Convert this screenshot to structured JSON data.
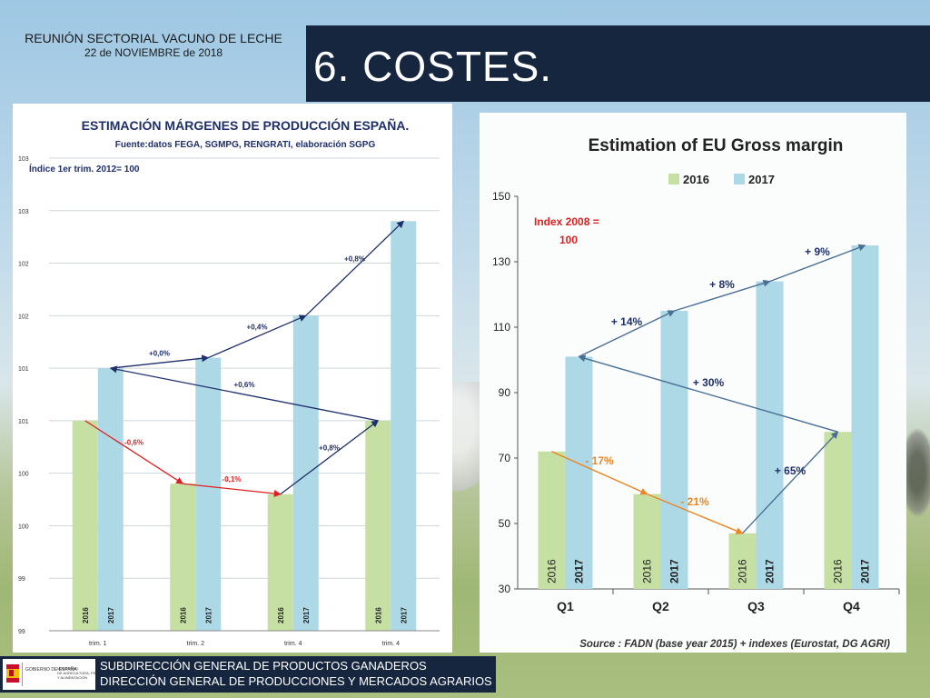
{
  "header": {
    "meeting_title": "REUNIÓN SECTORIAL VACUNO DE LECHE",
    "meeting_date": "22 de NOVIEMBRE de 2018",
    "slide_title": "6. COSTES."
  },
  "footer": {
    "line1": "SUBDIRECCIÓN GENERAL DE PRODUCTOS GANADEROS",
    "line2": "DIRECCIÓN GENERAL DE PRODUCCIONES Y MERCADOS AGRARIOS",
    "logo_text": "GOBIERNO DE ESPAÑA",
    "logo_text2": "MINISTERIO DE AGRICULTURA, PESCA Y ALIMENTACIÓN"
  },
  "colors": {
    "title_bar": "#16263f",
    "green_bar": "#c6e0a4",
    "blue_bar": "#add8e6",
    "arrow_red": "#e02020",
    "arrow_navy": "#1f2f6a",
    "arrow_orange": "#ee8522",
    "arrow_steel": "#4a6f95"
  },
  "chart_data": [
    {
      "type": "bar",
      "title": "ESTIMACIÓN MÁRGENES DE PRODUCCIÓN ESPAÑA.",
      "subtitle": "Fuente:datos FEGA, SGMPG, RENGRATI, elaboración SGPG",
      "index_note": "Índice 1er trim. 2012= 100",
      "categories": [
        "trim. 1",
        "trim. 2",
        "trim. 4",
        "trim. 4"
      ],
      "series": [
        {
          "name": "2016",
          "values": [
            101.0,
            100.4,
            100.3,
            101.0
          ]
        },
        {
          "name": "2017",
          "values": [
            101.5,
            101.6,
            102.0,
            102.9
          ]
        }
      ],
      "bar_labels": [
        "2016",
        "2017"
      ],
      "y_ticks": [
        "103",
        "103",
        "102",
        "102",
        "101",
        "101",
        "100",
        "100",
        "99",
        "99"
      ],
      "ylim": [
        99,
        103.5
      ],
      "grid": true,
      "annotations": [
        {
          "text": "+0,0%",
          "from": [
            0,
            "2017"
          ],
          "to": [
            1,
            "2017"
          ],
          "color": "navy"
        },
        {
          "text": "+0,4%",
          "from": [
            1,
            "2017"
          ],
          "to": [
            2,
            "2017"
          ],
          "color": "navy"
        },
        {
          "text": "+0,8%",
          "from": [
            2,
            "2017"
          ],
          "to": [
            3,
            "2017"
          ],
          "color": "navy"
        },
        {
          "text": "+0,6%",
          "from": [
            3,
            "2016"
          ],
          "to": [
            0,
            "2017"
          ],
          "color": "navy"
        },
        {
          "text": "-0,6%",
          "from": [
            0,
            "2016"
          ],
          "to": [
            1,
            "2016"
          ],
          "color": "red"
        },
        {
          "text": "-0,1%",
          "from": [
            1,
            "2016"
          ],
          "to": [
            2,
            "2016"
          ],
          "color": "red"
        },
        {
          "text": "+0,8%",
          "from": [
            2,
            "2016"
          ],
          "to": [
            3,
            "2016"
          ],
          "color": "navy"
        }
      ]
    },
    {
      "type": "bar",
      "title": "Estimation of EU Gross margin",
      "legend": [
        "2016",
        "2017"
      ],
      "legend_position": "top",
      "index_note": "Index 2008 = 100",
      "categories": [
        "Q1",
        "Q2",
        "Q3",
        "Q4"
      ],
      "series": [
        {
          "name": "2016",
          "values": [
            72,
            59,
            47,
            78
          ]
        },
        {
          "name": "2017",
          "values": [
            101,
            115,
            124,
            135
          ]
        }
      ],
      "bar_labels": [
        "2016",
        "2017"
      ],
      "y_ticks": [
        30,
        50,
        70,
        90,
        110,
        130,
        150
      ],
      "ylim": [
        30,
        150
      ],
      "grid": false,
      "source": "Source : FADN (base year 2015) + indexes (Eurostat, DG AGRI)",
      "annotations": [
        {
          "text": "+ 14%",
          "from": [
            0,
            "2017"
          ],
          "to": [
            1,
            "2017"
          ],
          "color": "steel"
        },
        {
          "text": "+ 8%",
          "from": [
            1,
            "2017"
          ],
          "to": [
            2,
            "2017"
          ],
          "color": "steel"
        },
        {
          "text": "+ 9%",
          "from": [
            2,
            "2017"
          ],
          "to": [
            3,
            "2017"
          ],
          "color": "steel"
        },
        {
          "text": "+ 30%",
          "from": [
            3,
            "2016"
          ],
          "to": [
            0,
            "2017"
          ],
          "color": "steel"
        },
        {
          "text": "- 17%",
          "from": [
            0,
            "2016"
          ],
          "to": [
            1,
            "2016"
          ],
          "color": "orange"
        },
        {
          "text": "- 21%",
          "from": [
            1,
            "2016"
          ],
          "to": [
            2,
            "2016"
          ],
          "color": "orange"
        },
        {
          "text": "+ 65%",
          "from": [
            2,
            "2016"
          ],
          "to": [
            3,
            "2016"
          ],
          "color": "steel"
        }
      ]
    }
  ]
}
